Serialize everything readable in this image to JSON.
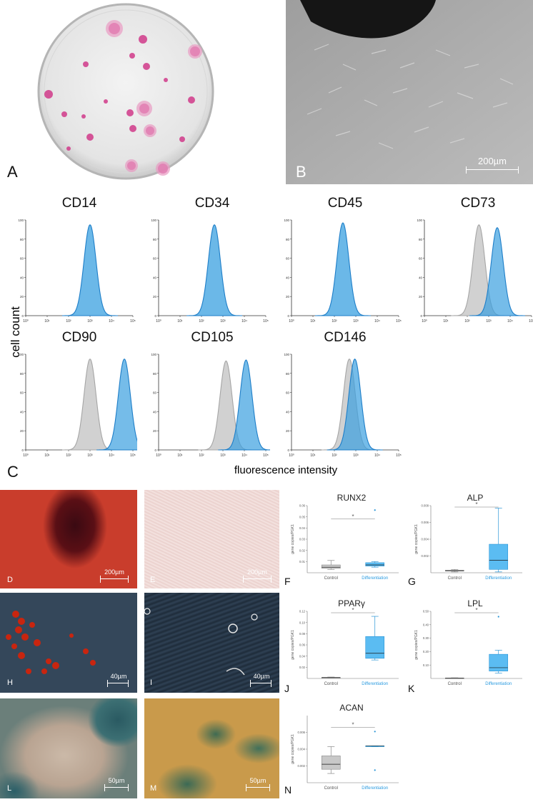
{
  "panels": {
    "A": "A",
    "B": "B",
    "C": "C",
    "D": "D",
    "E": "E",
    "F": "F",
    "G": "G",
    "H": "H",
    "I": "I",
    "J": "J",
    "K": "K",
    "L": "L",
    "M": "M",
    "N": "N"
  },
  "scalebars": {
    "B": "200µm",
    "D": "200µm",
    "E": "200µm",
    "H": "40µm",
    "I": "40µm",
    "L": "50µm",
    "M": "50µm"
  },
  "flow": {
    "ylabel": "cell count",
    "xlabel": "fluorescence intensity",
    "yticks": [
      "0",
      "20",
      "40",
      "60",
      "80",
      "100"
    ],
    "xticks": [
      "10⁰",
      "10¹",
      "10²",
      "10³",
      "10⁴",
      "10⁵"
    ],
    "colors": {
      "stained": "#3aa0e0",
      "control": "#bdbdbd"
    },
    "markers": [
      "CD14",
      "CD34",
      "CD45",
      "CD73",
      "CD90",
      "CD105",
      "CD146"
    ]
  },
  "chart_data": [
    {
      "type": "area",
      "title": "CD14",
      "ylabel": "cell count",
      "xlabel": "fluorescence intensity",
      "x_scale": "log",
      "xlim": [
        1,
        100000
      ],
      "ylim": [
        0,
        100
      ],
      "series": [
        {
          "peak_x": 1000,
          "peak_y": 95
        }
      ]
    },
    {
      "type": "area",
      "title": "CD34",
      "x_scale": "log",
      "xlim": [
        1,
        100000
      ],
      "ylim": [
        0,
        100
      ],
      "series": [
        {
          "peak_x": 400,
          "peak_y": 95
        }
      ]
    },
    {
      "type": "area",
      "title": "CD45",
      "x_scale": "log",
      "xlim": [
        1,
        100000
      ],
      "ylim": [
        0,
        100
      ],
      "series": [
        {
          "peak_x": 250,
          "peak_y": 97
        }
      ]
    },
    {
      "type": "area",
      "title": "CD73",
      "x_scale": "log",
      "xlim": [
        1,
        100000
      ],
      "ylim": [
        0,
        100
      ],
      "series": [
        {
          "peak_x": 350,
          "peak_y": 95
        },
        {
          "peak_x": 2500,
          "peak_y": 92
        }
      ]
    },
    {
      "type": "area",
      "title": "CD90",
      "x_scale": "log",
      "xlim": [
        1,
        100000
      ],
      "ylim": [
        0,
        100
      ],
      "series": [
        {
          "peak_x": 1000,
          "peak_y": 95
        },
        {
          "peak_x": 40000,
          "peak_y": 95
        }
      ]
    },
    {
      "type": "area",
      "title": "CD105",
      "x_scale": "log",
      "xlim": [
        1,
        100000
      ],
      "ylim": [
        0,
        100
      ],
      "series": [
        {
          "peak_x": 1400,
          "peak_y": 93
        },
        {
          "peak_x": 12000,
          "peak_y": 94
        }
      ]
    },
    {
      "type": "area",
      "title": "CD146",
      "x_scale": "log",
      "xlim": [
        1,
        100000
      ],
      "ylim": [
        0,
        100
      ],
      "series": [
        {
          "peak_x": 500,
          "peak_y": 95
        },
        {
          "peak_x": 900,
          "peak_y": 95
        }
      ]
    },
    {
      "type": "box",
      "title": "RUNX2",
      "ylabel": "gene copies/PGK1",
      "categories": [
        "Control",
        "Differentiation"
      ],
      "ylim": [
        0,
        0.06
      ],
      "yticks": [
        "0.01",
        "0.02",
        "0.03",
        "0.04",
        "0.05",
        "0.06"
      ],
      "significance": "*",
      "boxes": [
        {
          "min": 0.003,
          "q1": 0.004,
          "median": 0.005,
          "q3": 0.007,
          "max": 0.011
        },
        {
          "min": 0.005,
          "q1": 0.006,
          "median": 0.007,
          "q3": 0.009,
          "max": 0.01,
          "outlier": 0.056
        }
      ]
    },
    {
      "type": "box",
      "title": "ALP",
      "ylabel": "gene copies/PGK1",
      "categories": [
        "Control",
        "Differentiation"
      ],
      "ylim": [
        0,
        0.008
      ],
      "yticks": [
        "0.002",
        "0.004",
        "0.006",
        "0.008"
      ],
      "significance": "*",
      "boxes": [
        {
          "min": 0.0001,
          "q1": 0.0002,
          "median": 0.00025,
          "q3": 0.0003,
          "max": 0.0004
        },
        {
          "min": 0.0001,
          "q1": 0.0004,
          "median": 0.0015,
          "q3": 0.0034,
          "max": 0.0077
        }
      ]
    },
    {
      "type": "box",
      "title": "PPARγ",
      "ylabel": "gene copies/PGK1",
      "categories": [
        "Control",
        "Differentiation"
      ],
      "ylim": [
        0,
        0.12
      ],
      "yticks": [
        "0.02",
        "0.04",
        "0.06",
        "0.08",
        "0.10",
        "0.12"
      ],
      "significance": "*",
      "boxes": [
        {
          "min": 0.0005,
          "q1": 0.001,
          "median": 0.0015,
          "q3": 0.002,
          "max": 0.0025
        },
        {
          "min": 0.033,
          "q1": 0.036,
          "median": 0.045,
          "q3": 0.075,
          "max": 0.111
        }
      ]
    },
    {
      "type": "box",
      "title": "LPL",
      "ylabel": "gene copies/PGK1",
      "categories": [
        "Control",
        "Differentiation"
      ],
      "ylim": [
        0,
        0.5
      ],
      "yticks": [
        "0.10",
        "0.20",
        "0.30",
        "0.40",
        "0.50"
      ],
      "significance": "*",
      "boxes": [
        {
          "min": 0.001,
          "q1": 0.002,
          "median": 0.003,
          "q3": 0.004,
          "max": 0.005
        },
        {
          "min": 0.04,
          "q1": 0.055,
          "median": 0.08,
          "q3": 0.18,
          "max": 0.21,
          "outlier": 0.46
        }
      ]
    },
    {
      "type": "box",
      "title": "ACAN",
      "ylabel": "gene copies/PGK1",
      "categories": [
        "Control",
        "Differentiation"
      ],
      "ylim": [
        0,
        0.008
      ],
      "yticks": [
        "0.002",
        "0.004",
        "0.006"
      ],
      "significance": "*",
      "boxes": [
        {
          "min": 0.0011,
          "q1": 0.0016,
          "median": 0.0022,
          "q3": 0.0032,
          "max": 0.0043
        },
        {
          "min": 0.0043,
          "q1": 0.0043,
          "median": 0.0044,
          "q3": 0.0044,
          "max": 0.0044,
          "outlier_high": 0.0061,
          "outlier_low": 0.0015
        }
      ]
    }
  ]
}
